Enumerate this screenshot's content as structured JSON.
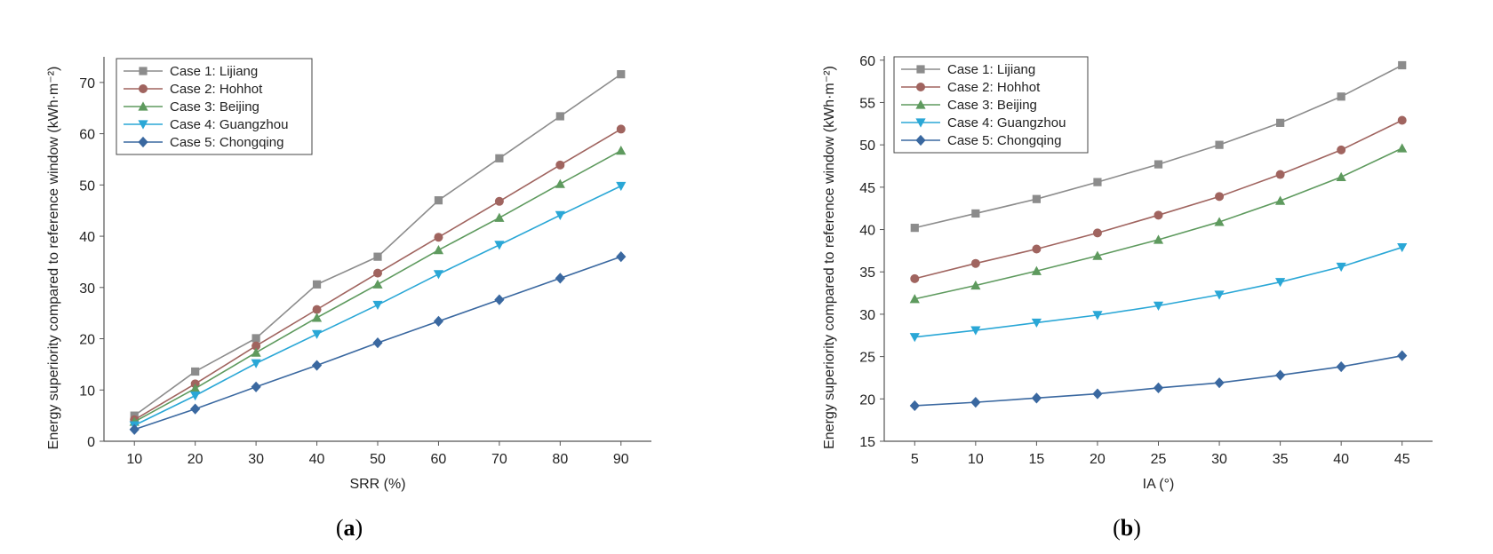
{
  "chart_data": [
    {
      "type": "line",
      "panel_label": "a",
      "xlabel": "SRR (%)",
      "ylabel": "Energy superiority compared to reference window (kWh·m⁻²)",
      "x": [
        10,
        20,
        30,
        40,
        50,
        60,
        70,
        80,
        90
      ],
      "xlim": [
        5,
        95
      ],
      "ylim": [
        0,
        75
      ],
      "yticks": [
        0,
        10,
        20,
        30,
        40,
        50,
        60,
        70
      ],
      "legend_position": "top-left",
      "series": [
        {
          "name": "Case 1: Lijiang",
          "color": "#8c8c8c",
          "marker": "square",
          "values": [
            5.0,
            13.6,
            20.1,
            30.6,
            36.0,
            47.0,
            55.2,
            63.4,
            71.6
          ]
        },
        {
          "name": "Case 2: Hohhot",
          "color": "#a0645f",
          "marker": "circle",
          "values": [
            4.2,
            11.2,
            18.6,
            25.7,
            32.8,
            39.8,
            46.8,
            53.9,
            60.9
          ]
        },
        {
          "name": "Case 3: Beijing",
          "color": "#5e9a5e",
          "marker": "triangle-up",
          "values": [
            3.8,
            10.3,
            17.3,
            24.1,
            30.6,
            37.3,
            43.6,
            50.2,
            56.7
          ]
        },
        {
          "name": "Case 4: Guangzhou",
          "color": "#2aa7d6",
          "marker": "triangle-down",
          "values": [
            3.1,
            8.9,
            15.2,
            20.9,
            26.6,
            32.6,
            38.3,
            44.1,
            49.8
          ]
        },
        {
          "name": "Case 5: Chongqing",
          "color": "#3a68a0",
          "marker": "diamond",
          "values": [
            2.3,
            6.3,
            10.6,
            14.8,
            19.2,
            23.4,
            27.6,
            31.8,
            36.0
          ]
        }
      ]
    },
    {
      "type": "line",
      "panel_label": "b",
      "xlabel": "IA (°)",
      "ylabel": "Energy superiority compared to reference window (kWh·m⁻²)",
      "x": [
        5,
        10,
        15,
        20,
        25,
        30,
        35,
        40,
        45
      ],
      "xlim": [
        2.5,
        47.5
      ],
      "ylim": [
        15,
        60.5
      ],
      "yticks": [
        15,
        20,
        25,
        30,
        35,
        40,
        45,
        50,
        55,
        60
      ],
      "legend_position": "top-left",
      "series": [
        {
          "name": "Case 1: Lijiang",
          "color": "#8c8c8c",
          "marker": "square",
          "values": [
            40.2,
            41.9,
            43.6,
            45.6,
            47.7,
            50.0,
            52.6,
            55.7,
            59.4
          ]
        },
        {
          "name": "Case 2: Hohhot",
          "color": "#a0645f",
          "marker": "circle",
          "values": [
            34.2,
            36.0,
            37.7,
            39.6,
            41.7,
            43.9,
            46.5,
            49.4,
            52.9
          ]
        },
        {
          "name": "Case 3: Beijing",
          "color": "#5e9a5e",
          "marker": "triangle-up",
          "values": [
            31.8,
            33.4,
            35.1,
            36.9,
            38.8,
            40.9,
            43.4,
            46.2,
            49.6
          ]
        },
        {
          "name": "Case 4: Guangzhou",
          "color": "#2aa7d6",
          "marker": "triangle-down",
          "values": [
            27.3,
            28.1,
            29.0,
            29.9,
            31.0,
            32.3,
            33.8,
            35.6,
            37.9
          ]
        },
        {
          "name": "Case 5: Chongqing",
          "color": "#3a68a0",
          "marker": "diamond",
          "values": [
            19.2,
            19.6,
            20.1,
            20.6,
            21.3,
            21.9,
            22.8,
            23.8,
            25.1
          ]
        }
      ]
    }
  ]
}
